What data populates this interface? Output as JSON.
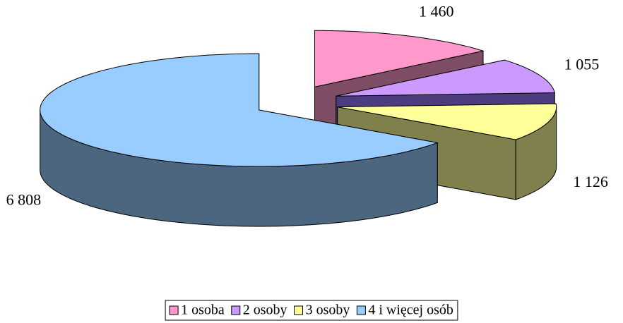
{
  "chart_data": {
    "type": "pie3d",
    "categories": [
      "1 osoba",
      "2 osoby",
      "3 osoby",
      "4 i więcej osób"
    ],
    "values": [
      1460,
      1055,
      1126,
      6808
    ],
    "value_labels": [
      "1 460",
      "1 055",
      "1 126",
      "6 808"
    ],
    "colors": [
      "#ff99cc",
      "#cc99ff",
      "#ffff99",
      "#99ccff"
    ],
    "side_colors": [
      "#804d66",
      "#4d3d80",
      "#80804d",
      "#4d6680"
    ],
    "legend": "bottom"
  }
}
